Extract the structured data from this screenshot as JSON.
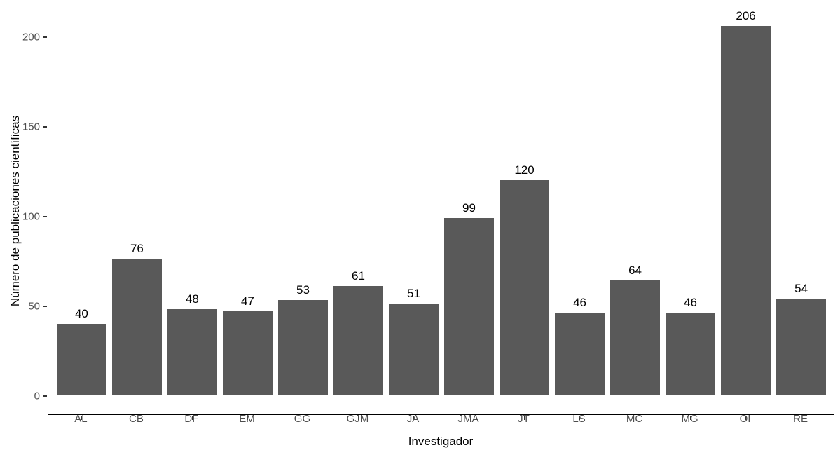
{
  "chart_data": {
    "type": "bar",
    "title": "",
    "xlabel": "Investigador",
    "ylabel": "Número de publicaciones científicas",
    "categories": [
      "AL",
      "CB",
      "DF",
      "EM",
      "GG",
      "GJM",
      "JA",
      "JMA",
      "JT",
      "LS",
      "MC",
      "MG",
      "OI",
      "RE"
    ],
    "values": [
      40,
      76,
      48,
      47,
      53,
      61,
      51,
      99,
      120,
      46,
      64,
      46,
      206,
      54
    ],
    "value_labels_shown": true,
    "yticks": [
      0,
      50,
      100,
      150,
      200
    ],
    "ylim": [
      0,
      216
    ],
    "grid": false,
    "legend": null,
    "colors": {
      "bar_fill": "#595959",
      "axis_tick_text": "#4D4D4D",
      "value_label_text": "#000000",
      "axis_title_text": "#000000",
      "axis_line": "#000000",
      "background": "#ffffff"
    }
  }
}
